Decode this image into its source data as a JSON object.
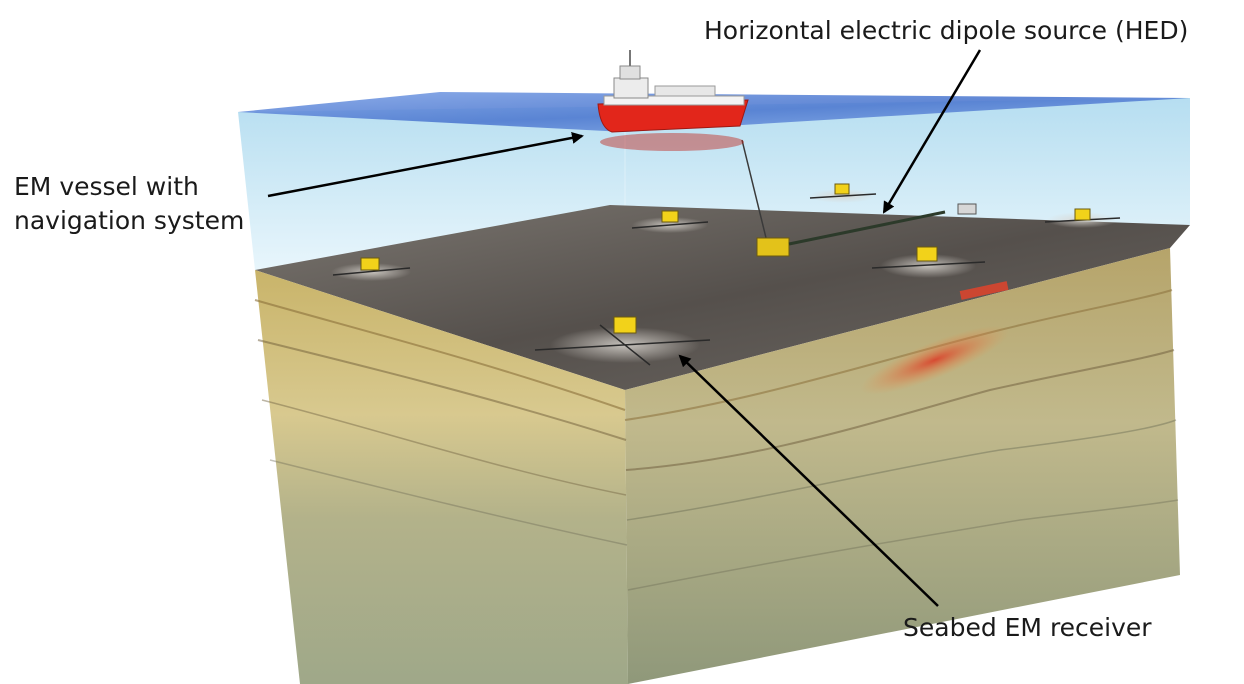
{
  "labels": {
    "vessel_line1": "EM vessel with",
    "vessel_line2": "navigation system",
    "source": "Horizontal electric dipole source (HED)",
    "receiver": "Seabed EM receiver"
  },
  "colors": {
    "water": "#bfe3f2",
    "water_surface": "#5a86d6",
    "seafloor": "#5f5a55",
    "sediment_front": "#c8c08a",
    "sediment_side": "#b9b48a",
    "hydrocarbon_anomaly": "#d8452e",
    "vessel_hull": "#e2261b",
    "receiver": "#f2d21a",
    "arrow": "#000000"
  },
  "icons": [
    "vessel",
    "em-receiver",
    "dipole-source",
    "towed-cable"
  ]
}
